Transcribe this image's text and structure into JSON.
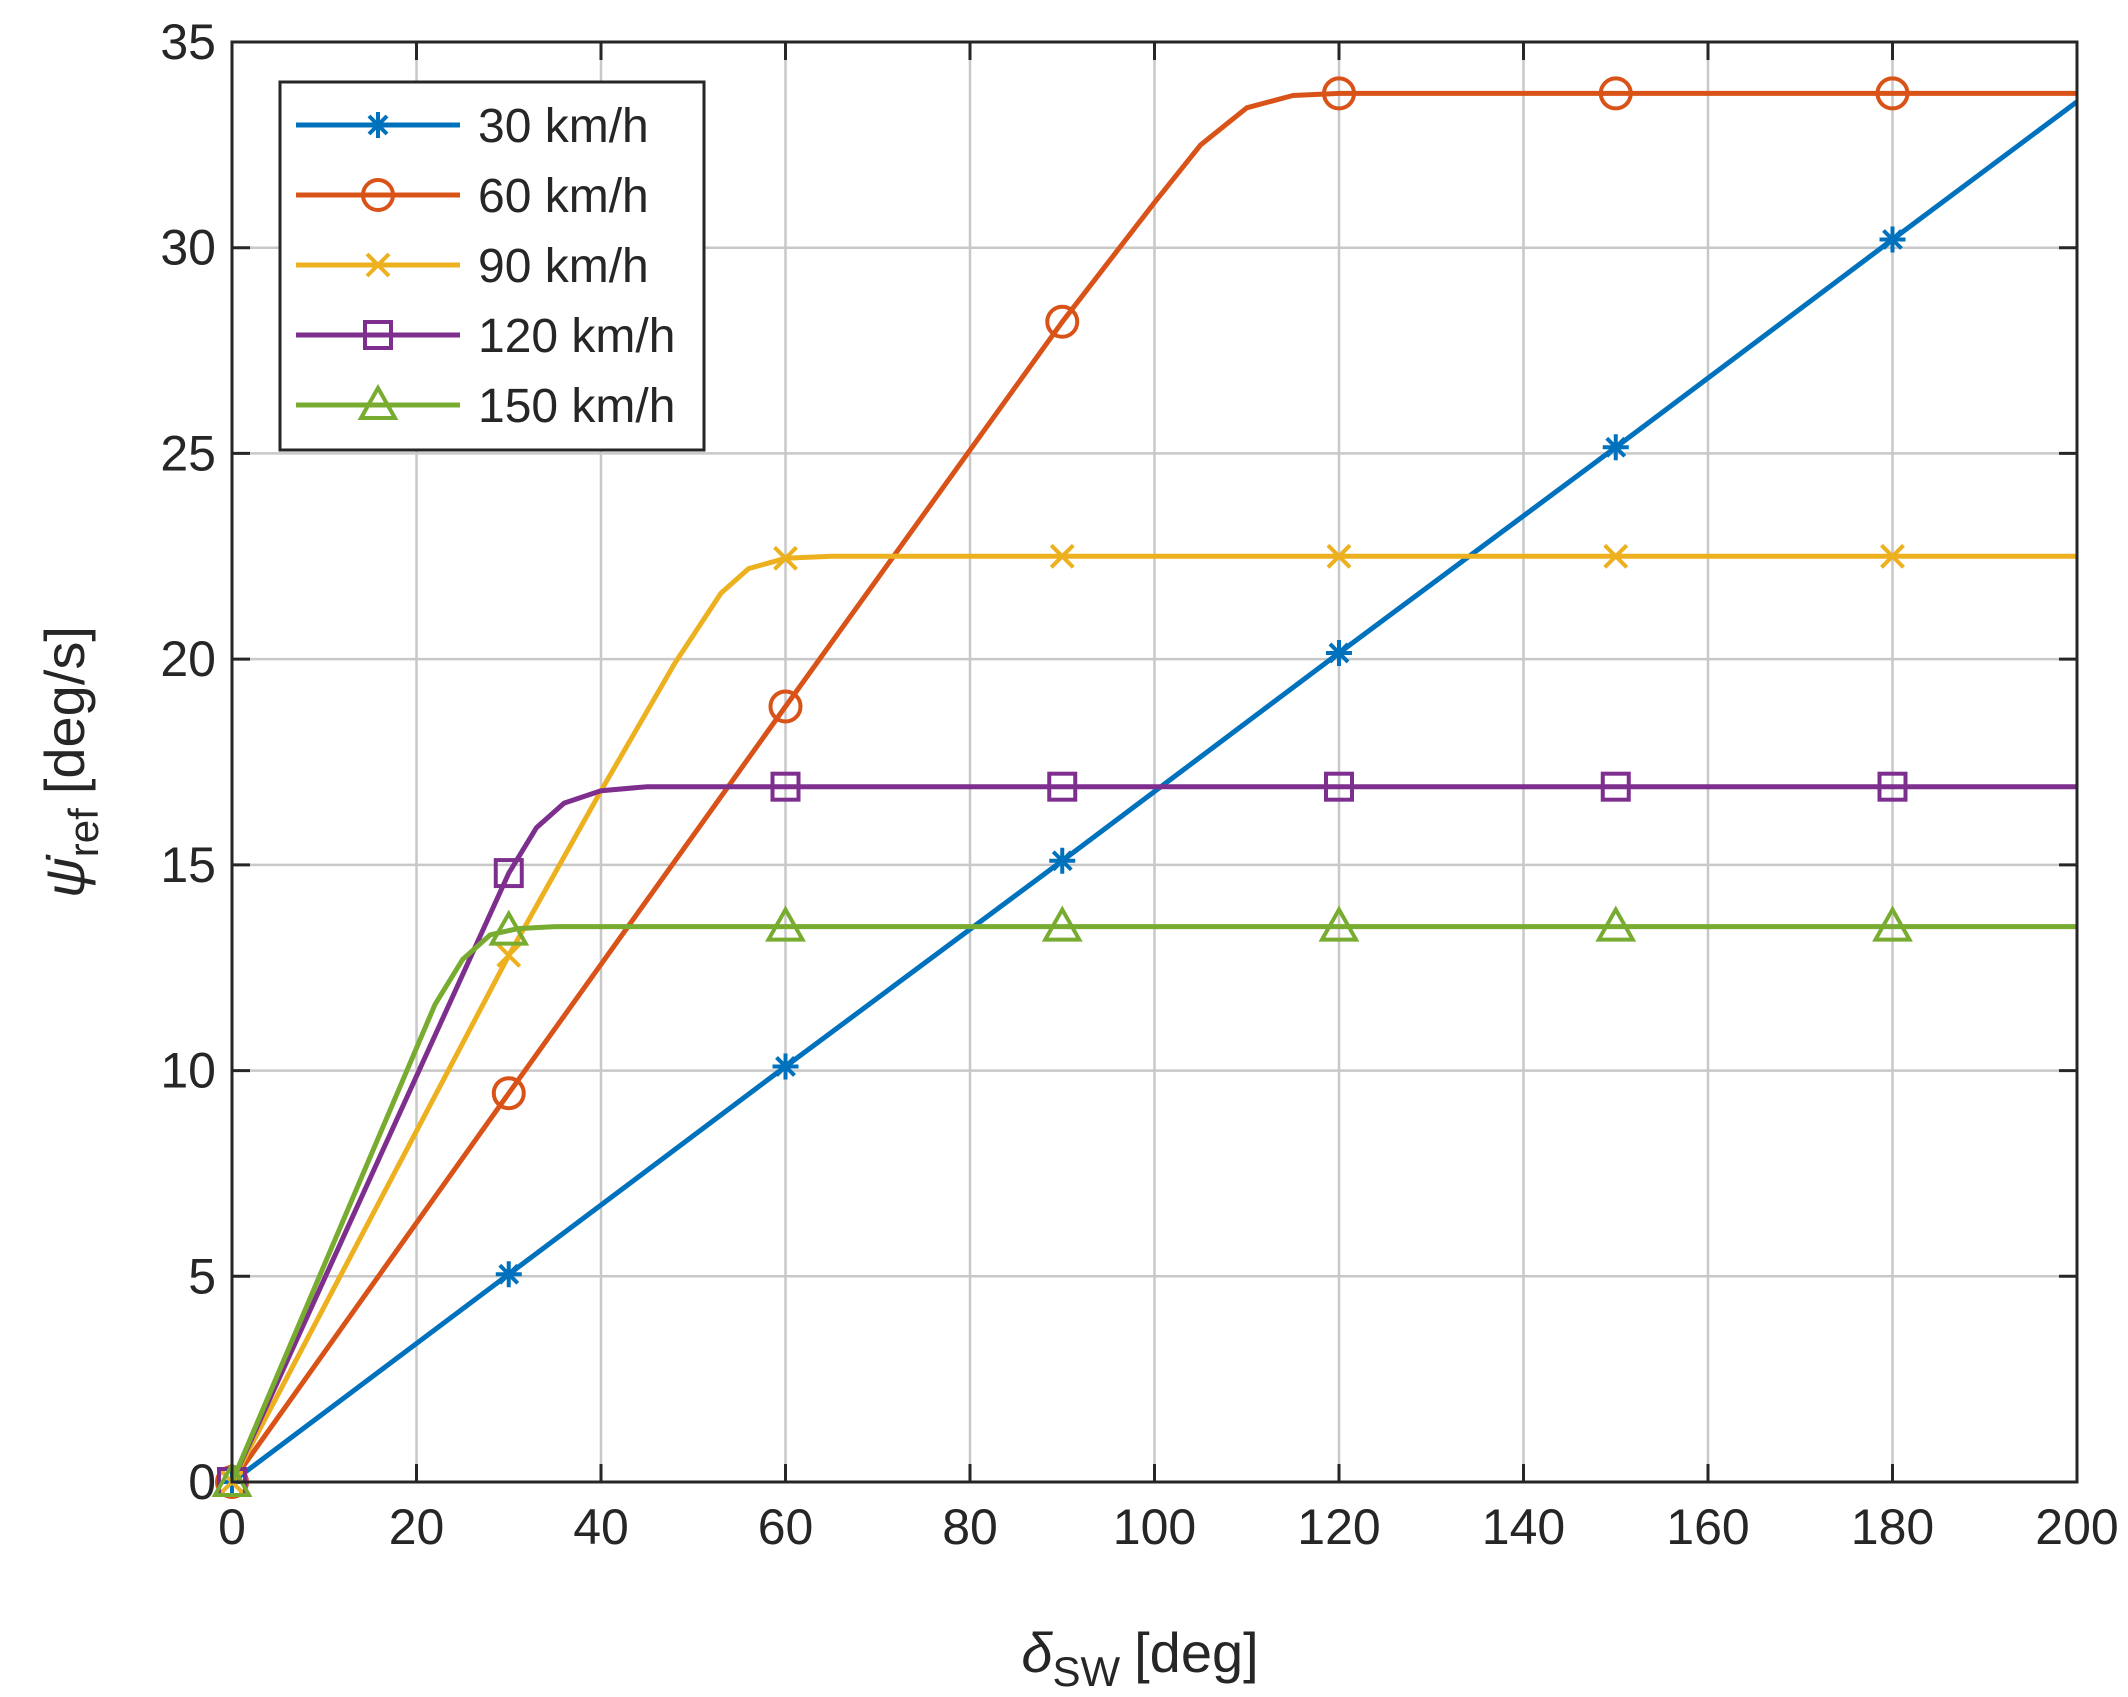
{
  "chart_data": {
    "type": "line",
    "title": "",
    "xlabel": "[deg]",
    "xlabel_symbol": "δ",
    "xlabel_sub": "SW",
    "ylabel": "[deg/s]",
    "ylabel_symbol": "ψ̇",
    "ylabel_sub": "ref",
    "xlim": [
      0,
      200
    ],
    "ylim": [
      0,
      35
    ],
    "xticks": [
      0,
      20,
      40,
      60,
      80,
      100,
      120,
      140,
      160,
      180,
      200
    ],
    "yticks": [
      0,
      5,
      10,
      15,
      20,
      25,
      30,
      35
    ],
    "grid": true,
    "legend_position": "top-left",
    "marker_x": [
      0,
      30,
      60,
      90,
      120,
      150,
      180
    ],
    "series": [
      {
        "name": "30 km/h",
        "color": "#0072BD",
        "marker": "asterisk",
        "x": [
          0,
          30,
          60,
          90,
          120,
          150,
          180,
          200
        ],
        "y": [
          0,
          5.05,
          10.1,
          15.1,
          20.15,
          25.15,
          30.2,
          33.55
        ]
      },
      {
        "name": "60 km/h",
        "color": "#D95319",
        "marker": "circle",
        "x": [
          0,
          30,
          60,
          90,
          100,
          105,
          110,
          115,
          120,
          150,
          180,
          200
        ],
        "y": [
          0,
          9.45,
          18.85,
          28.2,
          31.1,
          32.5,
          33.4,
          33.7,
          33.75,
          33.75,
          33.75,
          33.75
        ]
      },
      {
        "name": "90 km/h",
        "color": "#EDB120",
        "marker": "x",
        "x": [
          0,
          30,
          40,
          48,
          53,
          56,
          60,
          65,
          90,
          120,
          150,
          180,
          200
        ],
        "y": [
          0,
          12.8,
          16.8,
          19.9,
          21.6,
          22.2,
          22.45,
          22.5,
          22.5,
          22.5,
          22.5,
          22.5,
          22.5
        ]
      },
      {
        "name": "120 km/h",
        "color": "#7E2F8E",
        "marker": "square",
        "x": [
          0,
          30,
          33,
          36,
          40,
          45,
          60,
          90,
          120,
          150,
          180,
          200
        ],
        "y": [
          0,
          14.8,
          15.9,
          16.5,
          16.8,
          16.9,
          16.9,
          16.9,
          16.9,
          16.9,
          16.9,
          16.9
        ]
      },
      {
        "name": "150 km/h",
        "color": "#77AC30",
        "marker": "triangle",
        "x": [
          0,
          22,
          25,
          28,
          31,
          35,
          60,
          90,
          120,
          150,
          180,
          200
        ],
        "y": [
          0,
          11.6,
          12.7,
          13.3,
          13.45,
          13.5,
          13.5,
          13.5,
          13.5,
          13.5,
          13.5,
          13.5
        ]
      }
    ]
  }
}
